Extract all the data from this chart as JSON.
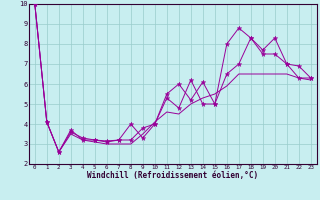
{
  "xlabel": "Windchill (Refroidissement éolien,°C)",
  "background_color": "#c8eef0",
  "grid_color": "#99cccc",
  "line_color": "#990099",
  "xlim": [
    -0.5,
    23.5
  ],
  "ylim": [
    2,
    10
  ],
  "xticks": [
    0,
    1,
    2,
    3,
    4,
    5,
    6,
    7,
    8,
    9,
    10,
    11,
    12,
    13,
    14,
    15,
    16,
    17,
    18,
    19,
    20,
    21,
    22,
    23
  ],
  "yticks": [
    2,
    3,
    4,
    5,
    6,
    7,
    8,
    9,
    10
  ],
  "line1_x": [
    0,
    1,
    2,
    3,
    4,
    5,
    6,
    7,
    8,
    9,
    10,
    11,
    12,
    13,
    14,
    15,
    16,
    17,
    18,
    19,
    20,
    21,
    22,
    23
  ],
  "line1_y": [
    10.0,
    4.1,
    2.6,
    3.6,
    3.3,
    3.2,
    3.1,
    3.2,
    3.2,
    3.8,
    4.0,
    5.3,
    4.8,
    6.2,
    5.0,
    5.0,
    8.0,
    8.8,
    8.3,
    7.7,
    8.3,
    7.0,
    6.3,
    6.3
  ],
  "line2_x": [
    0,
    1,
    2,
    3,
    4,
    5,
    6,
    7,
    8,
    9,
    10,
    11,
    12,
    13,
    14,
    15,
    16,
    17,
    18,
    19,
    20,
    21,
    22,
    23
  ],
  "line2_y": [
    10.0,
    4.1,
    2.6,
    3.7,
    3.2,
    3.2,
    3.15,
    3.2,
    4.0,
    3.3,
    4.0,
    5.5,
    6.0,
    5.2,
    6.1,
    5.0,
    6.5,
    7.0,
    8.3,
    7.5,
    7.5,
    7.0,
    6.9,
    6.3
  ],
  "line3_x": [
    0,
    1,
    2,
    3,
    4,
    5,
    6,
    7,
    8,
    9,
    10,
    11,
    12,
    13,
    14,
    15,
    16,
    17,
    18,
    19,
    20,
    21,
    22,
    23
  ],
  "line3_y": [
    10.0,
    4.1,
    2.6,
    3.5,
    3.2,
    3.1,
    3.0,
    3.0,
    3.0,
    3.5,
    4.1,
    4.6,
    4.5,
    5.0,
    5.3,
    5.5,
    5.9,
    6.5,
    6.5,
    6.5,
    6.5,
    6.5,
    6.3,
    6.2
  ]
}
